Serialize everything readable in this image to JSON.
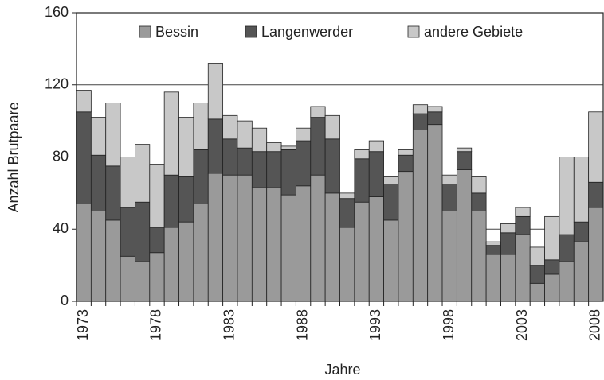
{
  "chart_data": {
    "type": "stacked-bar",
    "xlabel": "Jahre",
    "ylabel": "Anzahl Brutpaare",
    "categories": [
      "1973",
      null,
      null,
      null,
      null,
      "1978",
      null,
      null,
      null,
      null,
      "1983",
      null,
      null,
      null,
      null,
      "1988",
      null,
      null,
      null,
      null,
      "1993",
      null,
      null,
      null,
      null,
      "1998",
      null,
      null,
      null,
      null,
      "2003",
      null,
      null,
      null,
      null,
      "2008"
    ],
    "series": [
      {
        "name": "Bessin",
        "color": "#9a9a9a",
        "values": [
          54,
          50,
          45,
          25,
          22,
          27,
          41,
          44,
          54,
          71,
          70,
          70,
          63,
          63,
          59,
          64,
          70,
          60,
          41,
          55,
          58,
          45,
          72,
          95,
          98,
          50,
          73,
          50,
          26,
          26,
          37,
          10,
          15,
          22,
          33,
          52
        ]
      },
      {
        "name": "Langenwerder",
        "color": "#555555",
        "values": [
          51,
          31,
          30,
          27,
          33,
          14,
          29,
          25,
          30,
          30,
          20,
          15,
          20,
          20,
          25,
          25,
          32,
          30,
          16,
          24,
          25,
          20,
          9,
          9,
          7,
          15,
          10,
          10,
          5,
          12,
          10,
          10,
          8,
          15,
          11,
          14
        ]
      },
      {
        "name": "andere Gebiete",
        "color": "#c8c8c8",
        "values": [
          12,
          21,
          35,
          28,
          32,
          35,
          46,
          33,
          26,
          31,
          13,
          15,
          13,
          5,
          2,
          7,
          6,
          13,
          3,
          5,
          6,
          4,
          3,
          5,
          3,
          5,
          2,
          9,
          2,
          5,
          5,
          10,
          24,
          43,
          36,
          39
        ]
      }
    ],
    "ylim": [
      0,
      160
    ],
    "yticks": [
      0,
      40,
      80,
      120,
      160
    ],
    "grid": true
  }
}
